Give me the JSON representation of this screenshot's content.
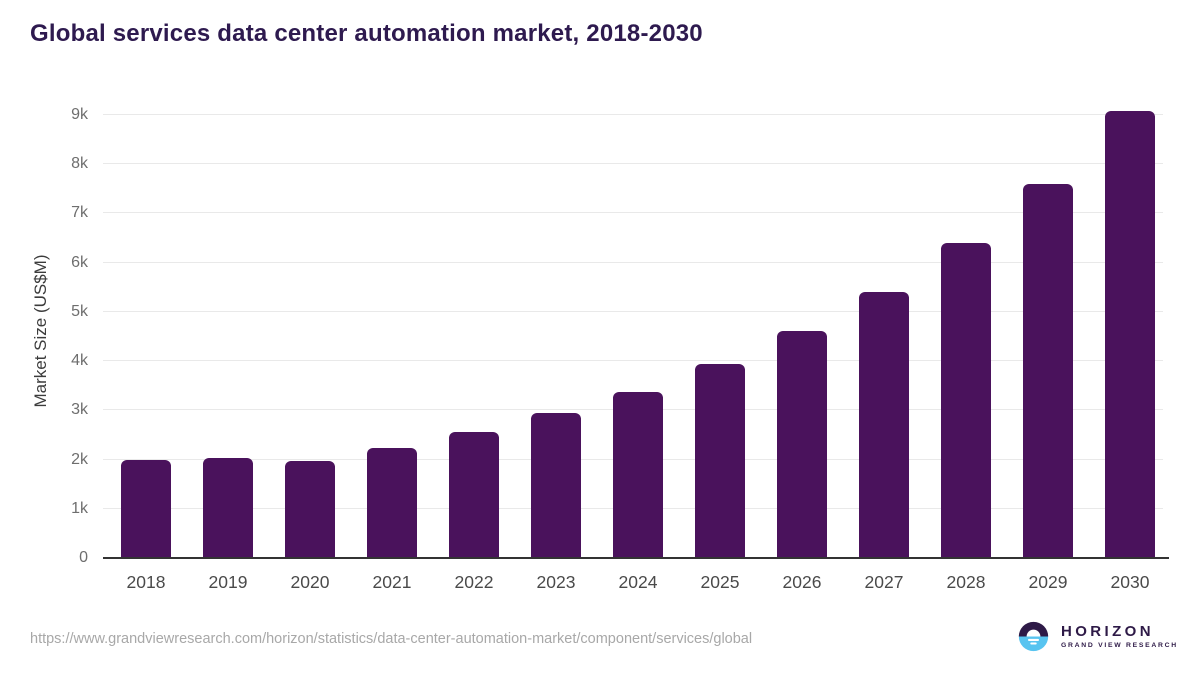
{
  "title": "Global services data center automation market, 2018-2030",
  "source_url": "https://www.grandviewresearch.com/horizon/statistics/data-center-automation-market/component/services/global",
  "logo": {
    "icon": "sunrise-horizon-icon",
    "wordmark": "HORIZON",
    "subtitle": "GRAND VIEW RESEARCH"
  },
  "chart_data": {
    "type": "bar",
    "title": "Global services data center automation market, 2018-2030",
    "xlabel": "",
    "ylabel": "Market Size (US$M)",
    "categories": [
      "2018",
      "2019",
      "2020",
      "2021",
      "2022",
      "2023",
      "2024",
      "2025",
      "2026",
      "2027",
      "2028",
      "2029",
      "2030"
    ],
    "values": [
      2000,
      2040,
      1980,
      2230,
      2550,
      2940,
      3380,
      3940,
      4620,
      5410,
      6400,
      7590,
      9070
    ],
    "ylim": [
      0,
      9200
    ],
    "yticks": [
      0,
      1000,
      2000,
      3000,
      4000,
      5000,
      6000,
      7000,
      8000,
      9000
    ],
    "ytick_labels": [
      "0",
      "1k",
      "2k",
      "3k",
      "4k",
      "5k",
      "6k",
      "7k",
      "8k",
      "9k"
    ],
    "grid": true,
    "legend": false
  },
  "colors": {
    "bar": "#4a125c",
    "title": "#2e1a4f",
    "y_axis_title": "#3c3c3c",
    "ytick_label": "#6e6e6e",
    "xtick_label": "#4a4a4a",
    "gridline": "#e9e9e9",
    "axis_line": "#333333",
    "source_url": "#a8a8a8",
    "logo_purple": "#2e1a47",
    "logo_blue": "#58c4f0"
  }
}
